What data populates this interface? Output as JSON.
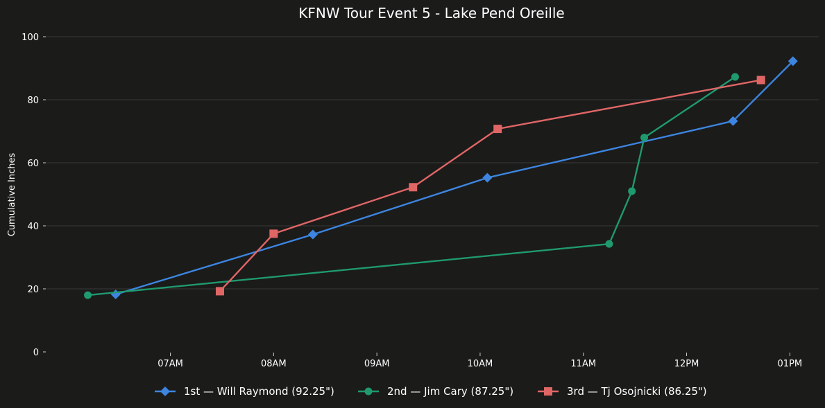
{
  "chart_data": {
    "type": "line",
    "title": "KFNW Tour Event 5 - Lake Pend Oreille",
    "xlabel": "",
    "ylabel": "Cumulative Inches",
    "ylim": [
      0,
      100
    ],
    "y_ticks": [
      0,
      20,
      40,
      60,
      80,
      100
    ],
    "x_ticks": [
      "07AM",
      "08AM",
      "09AM",
      "10AM",
      "11AM",
      "12PM",
      "01PM"
    ],
    "x_tick_hours": [
      7,
      8,
      9,
      10,
      11,
      12,
      13
    ],
    "xlim_hours": [
      5.8,
      13.28
    ],
    "grid": true,
    "legend_position": "bottom-center",
    "series": [
      {
        "name": "1st — Will Raymond (92.25\")",
        "color": "#3d85e0",
        "marker": "diamond",
        "x": [
          6.47,
          8.38,
          10.07,
          12.45,
          13.03
        ],
        "y": [
          18.25,
          37.25,
          55.25,
          73.25,
          92.25
        ]
      },
      {
        "name": "2nd — Jim Cary (87.25\")",
        "color": "#1f9a6f",
        "marker": "circle",
        "x": [
          6.2,
          11.25,
          11.47,
          11.59,
          12.47
        ],
        "y": [
          18.0,
          34.25,
          51.0,
          68.0,
          87.25
        ]
      },
      {
        "name": "3rd — Tj Osojnicki (86.25\")",
        "color": "#e06666",
        "marker": "square",
        "x": [
          7.48,
          8.0,
          9.35,
          10.17,
          12.72
        ],
        "y": [
          19.25,
          37.5,
          52.25,
          70.75,
          86.25
        ]
      }
    ]
  }
}
